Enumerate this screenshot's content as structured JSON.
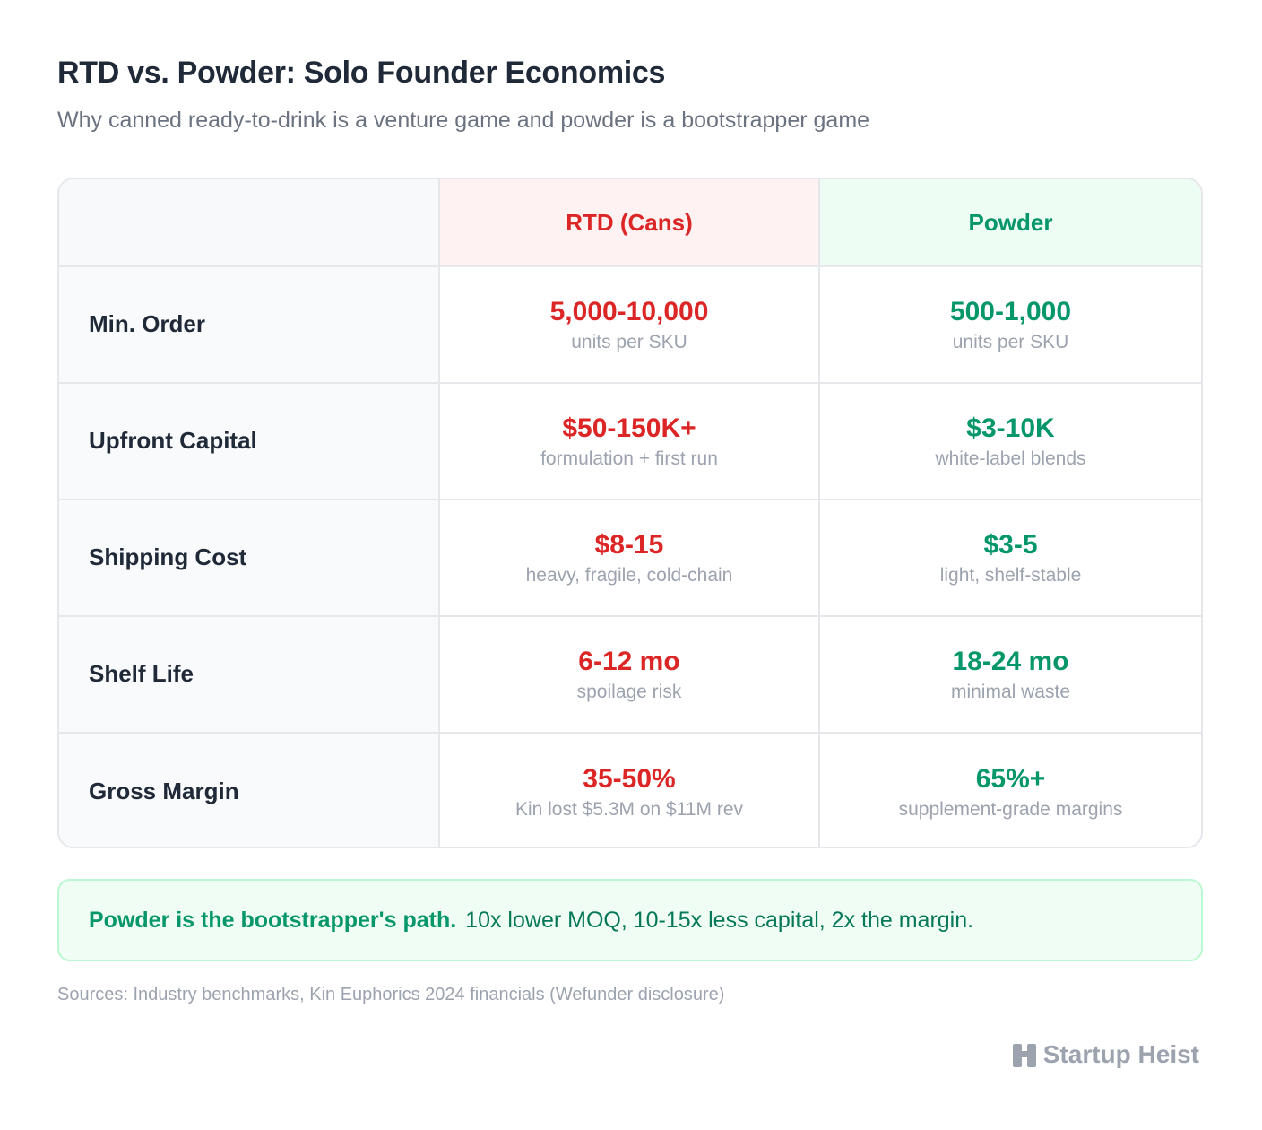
{
  "header": {
    "title": "RTD vs. Powder: Solo Founder Economics",
    "subtitle": "Why canned ready-to-drink is a venture game and powder is a bootstrapper game"
  },
  "table": {
    "columns": {
      "rtd": "RTD (Cans)",
      "powder": "Powder"
    },
    "rows": [
      {
        "label": "Min. Order",
        "rtd": {
          "value": "5,000-10,000",
          "note": "units per SKU"
        },
        "powder": {
          "value": "500-1,000",
          "note": "units per SKU"
        }
      },
      {
        "label": "Upfront Capital",
        "rtd": {
          "value": "$50-150K+",
          "note": "formulation + first run"
        },
        "powder": {
          "value": "$3-10K",
          "note": "white-label blends"
        }
      },
      {
        "label": "Shipping Cost",
        "rtd": {
          "value": "$8-15",
          "note": "heavy, fragile, cold-chain"
        },
        "powder": {
          "value": "$3-5",
          "note": "light, shelf-stable"
        }
      },
      {
        "label": "Shelf Life",
        "rtd": {
          "value": "6-12 mo",
          "note": "spoilage risk"
        },
        "powder": {
          "value": "18-24 mo",
          "note": "minimal waste"
        }
      },
      {
        "label": "Gross Margin",
        "rtd": {
          "value": "35-50%",
          "note": "Kin lost $5.3M on $11M rev"
        },
        "powder": {
          "value": "65%+",
          "note": "supplement-grade margins"
        }
      }
    ]
  },
  "callout": {
    "strong": "Powder is the bootstrapper's path.",
    "text": "10x lower MOQ, 10-15x less capital, 2x the margin."
  },
  "sources": "Sources: Industry benchmarks, Kin Euphorics 2024 financials (Wefunder disclosure)",
  "brand": {
    "name": "Startup Heist",
    "icon": "building-icon"
  },
  "colors": {
    "rtd": "#dc2626",
    "powder": "#059669",
    "muted": "#9ca3af"
  }
}
